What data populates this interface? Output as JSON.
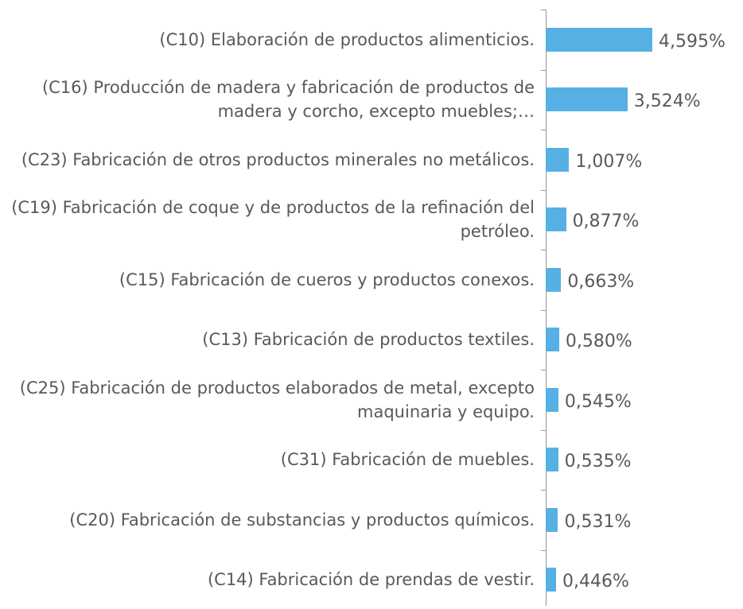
{
  "chart_data": {
    "type": "barh",
    "categories": [
      "(C10) Elaboración de productos alimenticios.",
      "(C16) Producción de madera y fabricación de productos de madera y corcho, excepto muebles;…",
      "(C23) Fabricación de otros productos minerales no metálicos.",
      "(C19) Fabricación de coque y de productos de la refinación del petróleo.",
      "(C15) Fabricación de cueros y productos conexos.",
      "(C13) Fabricación de productos textiles.",
      "(C25) Fabricación de productos elaborados de metal, excepto maquinaria y equipo.",
      "(C31) Fabricación de muebles.",
      "(C20) Fabricación de substancias y productos químicos.",
      "(C14) Fabricación de prendas de vestir."
    ],
    "values": [
      4.595,
      3.524,
      1.007,
      0.877,
      0.663,
      0.58,
      0.545,
      0.535,
      0.531,
      0.446
    ],
    "value_labels": [
      "4,595%",
      "3,524%",
      "1,007%",
      "0,877%",
      "0,663%",
      "0,580%",
      "0,545%",
      "0,535%",
      "0,531%",
      "0,446%"
    ],
    "color": "#56b0e4"
  }
}
